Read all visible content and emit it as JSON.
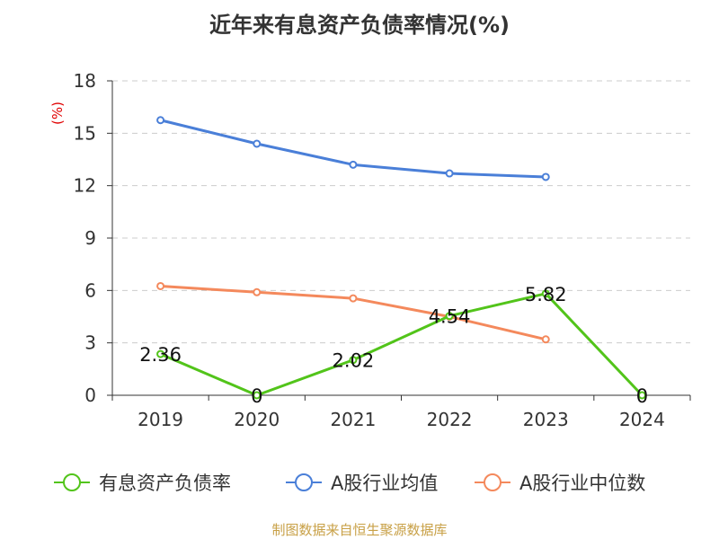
{
  "title": "近年来有息资产负债率情况(%)",
  "source": "制图数据来自恒生聚源数据库",
  "colors": {
    "axis": "#333333",
    "grid": "#cccccc",
    "unit": "#e00000",
    "source": "#c8a046"
  },
  "chart_data": {
    "type": "line",
    "ylabel": "(%)",
    "ylim": [
      0,
      18
    ],
    "yticks": [
      0,
      3,
      6,
      9,
      12,
      15,
      18
    ],
    "grid": true,
    "legend_position": "bottom",
    "categories": [
      "2019",
      "2020",
      "2021",
      "2022",
      "2023",
      "2024"
    ],
    "series": [
      {
        "name": "有息资产负债率",
        "color": "#52c41a",
        "values": [
          2.36,
          0,
          2.02,
          4.54,
          5.82,
          0
        ],
        "data_labels": [
          "2.36",
          "0",
          "2.02",
          "4.54",
          "5.82",
          "0"
        ]
      },
      {
        "name": "A股行业均值",
        "color": "#4a7fd8",
        "values": [
          15.75,
          14.4,
          13.2,
          12.7,
          12.5,
          null
        ],
        "data_labels": []
      },
      {
        "name": "A股行业中位数",
        "color": "#f4895c",
        "values": [
          6.25,
          5.9,
          5.55,
          4.5,
          3.2,
          null
        ],
        "data_labels": []
      }
    ]
  }
}
